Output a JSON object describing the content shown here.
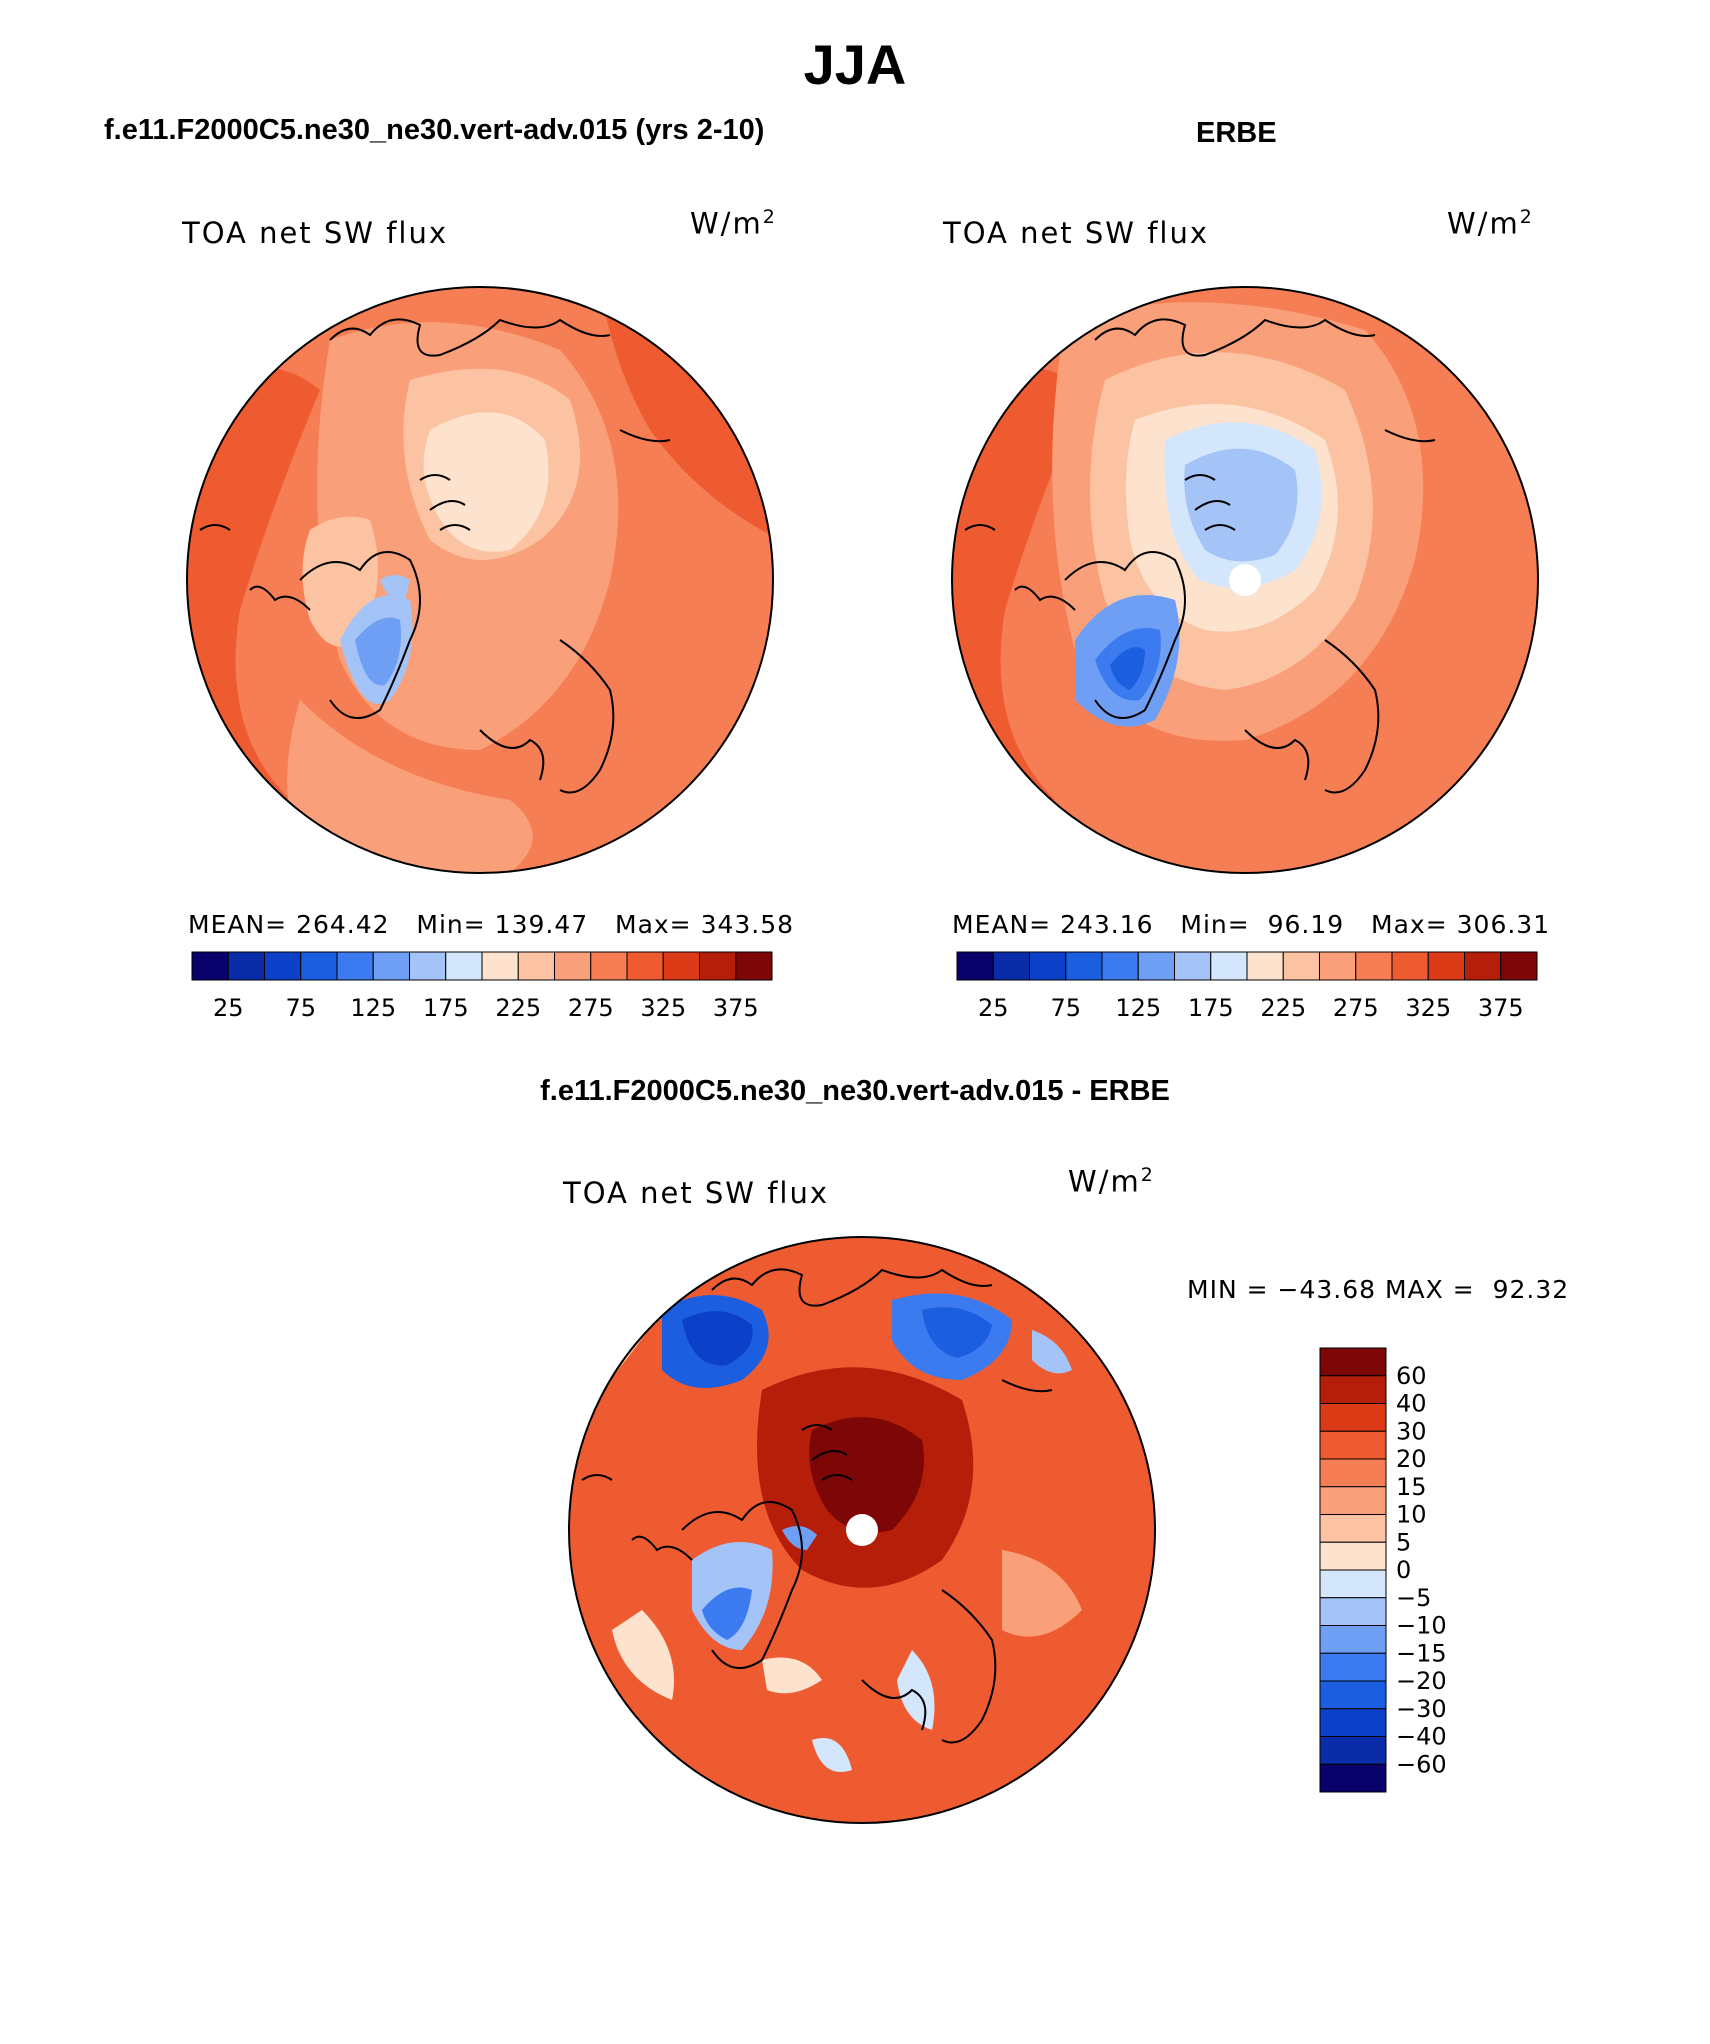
{
  "title": "JJA",
  "colors": {
    "land_outline": "#000000",
    "polar_hole": "#ffffff"
  },
  "panels": [
    {
      "id": "model",
      "title": "f.e11.F2000C5.ne30_ne30.vert-adv.015 (yrs 2-10)",
      "field": "TOA net SW flux",
      "units": "W/m",
      "units_sup": "2",
      "stats": {
        "mean_label": "MEAN=",
        "mean": "264.42",
        "min_label": "Min=",
        "min": "139.47",
        "max_label": "Max=",
        "max": "343.58"
      },
      "colorbar": {
        "colors": [
          "#08006b",
          "#0b2ca8",
          "#0c40c9",
          "#1b5ee0",
          "#3b7bef",
          "#6f9ff5",
          "#a4c3f7",
          "#d4e6fb",
          "#fde3ce",
          "#fcc3a3",
          "#f9a07a",
          "#f67e55",
          "#ef5b31",
          "#dc3a17",
          "#b51f0a",
          "#7d0606"
        ],
        "labels": [
          "25",
          "75",
          "125",
          "175",
          "225",
          "275",
          "325",
          "375"
        ]
      }
    },
    {
      "id": "obs",
      "title": "ERBE",
      "field": "TOA net SW flux",
      "units": "W/m",
      "units_sup": "2",
      "stats": {
        "mean_label": "MEAN=",
        "mean": "243.16",
        "min_label": "Min=",
        "min": "96.19",
        "max_label": "Max=",
        "max": "306.31"
      },
      "colorbar": {
        "colors": [
          "#08006b",
          "#0b2ca8",
          "#0c40c9",
          "#1b5ee0",
          "#3b7bef",
          "#6f9ff5",
          "#a4c3f7",
          "#d4e6fb",
          "#fde3ce",
          "#fcc3a3",
          "#f9a07a",
          "#f67e55",
          "#ef5b31",
          "#dc3a17",
          "#b51f0a",
          "#7d0606"
        ],
        "labels": [
          "25",
          "75",
          "125",
          "175",
          "225",
          "275",
          "325",
          "375"
        ]
      }
    },
    {
      "id": "diff",
      "title": "f.e11.F2000C5.ne30_ne30.vert-adv.015 - ERBE",
      "field": "TOA net SW flux",
      "units": "W/m",
      "units_sup": "2",
      "stats": {
        "min_label": "MIN =",
        "min": "−43.68",
        "max_label": "MAX =",
        "max": "92.32"
      },
      "colorbar": {
        "colors": [
          "#7d0606",
          "#b51f0a",
          "#dc3a17",
          "#ef5b31",
          "#f67e55",
          "#f9a07a",
          "#fcc3a3",
          "#fde3ce",
          "#d4e6fb",
          "#a4c3f7",
          "#6f9ff5",
          "#3b7bef",
          "#1b5ee0",
          "#0c40c9",
          "#0b2ca8",
          "#08006b"
        ],
        "labels": [
          "60",
          "40",
          "30",
          "20",
          "15",
          "10",
          "5",
          "0",
          "−5",
          "−10",
          "−15",
          "−20",
          "−30",
          "−40",
          "−60"
        ]
      }
    }
  ]
}
